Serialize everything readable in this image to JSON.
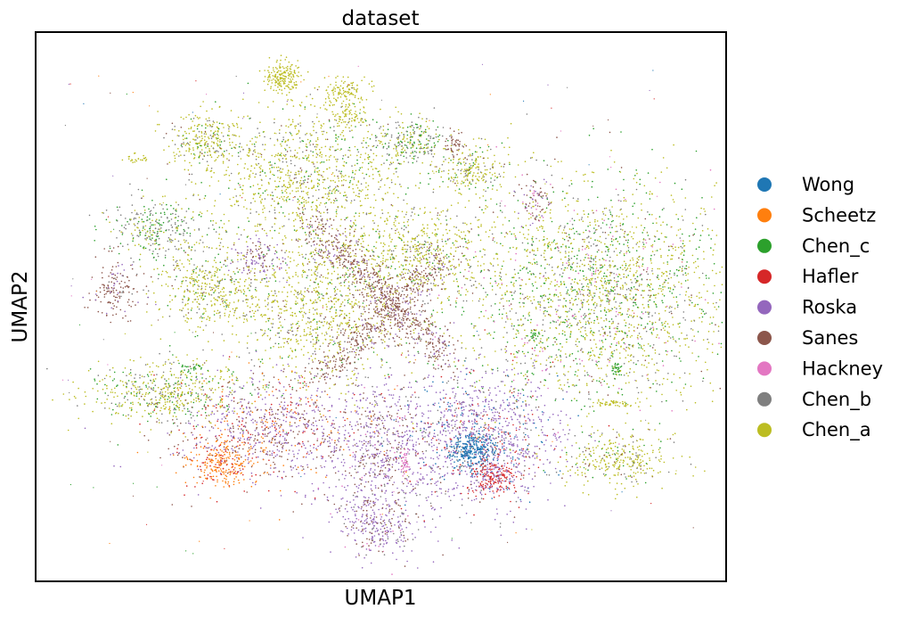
{
  "chart_data": {
    "type": "scatter",
    "title": "dataset",
    "xlabel": "UMAP1",
    "ylabel": "UMAP2",
    "xticks": false,
    "yticks": false,
    "grid": false,
    "legend_position": "right",
    "series": [
      {
        "name": "Wong",
        "color": "#1f77b4"
      },
      {
        "name": "Scheetz",
        "color": "#ff7f0e"
      },
      {
        "name": "Chen_c",
        "color": "#2ca02c"
      },
      {
        "name": "Hafler",
        "color": "#d62728"
      },
      {
        "name": "Roska",
        "color": "#9467bd"
      },
      {
        "name": "Sanes",
        "color": "#8c564b"
      },
      {
        "name": "Hackney",
        "color": "#e377c2"
      },
      {
        "name": "Chen_b",
        "color": "#7f7f7f"
      },
      {
        "name": "Chen_a",
        "color": "#bcbd22"
      }
    ]
  }
}
